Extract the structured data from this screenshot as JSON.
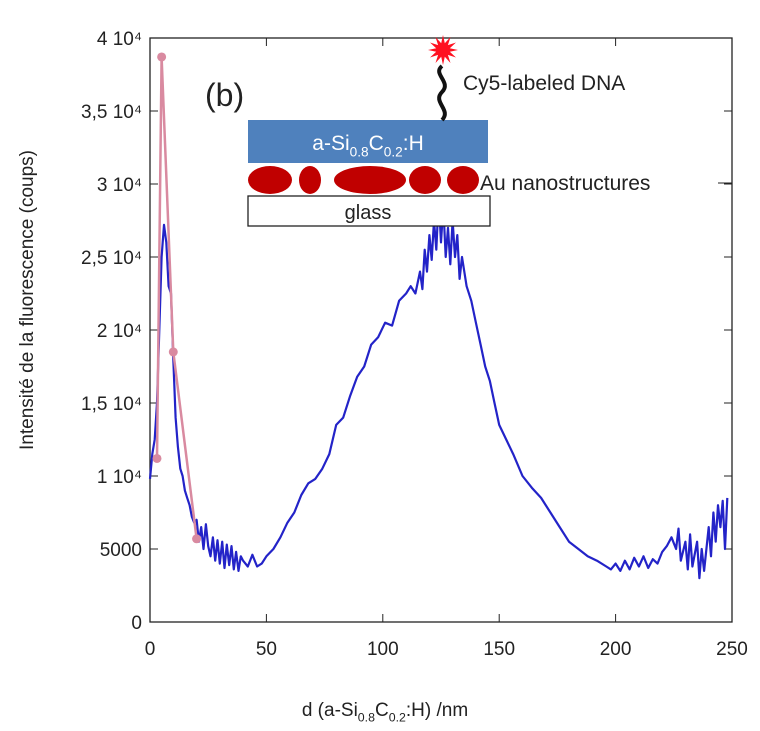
{
  "chart_data": {
    "type": "line",
    "ylabel": "Intensité de la fluorescence (coups)",
    "xlabel": [
      "d (a-Si",
      "0.8",
      "C",
      "0.2",
      ":H) /nm"
    ],
    "xlim": [
      0,
      250
    ],
    "xticks": [
      0,
      50,
      100,
      150,
      200,
      250
    ],
    "ylim": [
      0,
      40000
    ],
    "yticks": [
      0,
      5000,
      {
        "value": 10000,
        "label": "1 10⁴"
      },
      {
        "value": 15000,
        "label": "1,5 10⁴"
      },
      {
        "value": 20000,
        "label": "2 10⁴"
      },
      {
        "value": 25000,
        "label": "2,5 10⁴"
      },
      {
        "value": 30000,
        "label": "3 10⁴"
      },
      {
        "value": 35000,
        "label": "3,5 10⁴"
      },
      {
        "value": 40000,
        "label": "4 10⁴"
      }
    ],
    "grid": false,
    "series": [
      {
        "color": "#2323c8",
        "markers": false,
        "x": [
          0,
          1,
          2,
          3,
          4,
          5,
          6,
          7,
          8,
          9,
          10,
          11,
          12,
          13,
          14,
          15,
          16,
          17,
          18,
          19,
          20,
          21,
          22,
          23,
          24,
          25,
          26,
          27,
          28,
          29,
          30,
          31,
          32,
          33,
          34,
          35,
          36,
          37,
          38,
          39,
          40,
          42,
          44,
          46,
          48,
          50,
          53,
          56,
          59,
          62,
          65,
          68,
          71,
          74,
          77,
          80,
          83,
          86,
          89,
          92,
          95,
          98,
          101,
          104,
          107,
          110,
          112,
          114,
          116,
          117,
          118,
          119,
          120,
          121,
          122,
          123,
          124,
          125,
          126,
          127,
          128,
          129,
          130,
          131,
          132,
          133,
          134,
          136,
          138,
          140,
          142,
          144,
          146,
          148,
          150,
          153,
          156,
          160,
          164,
          168,
          172,
          176,
          180,
          184,
          188,
          192,
          196,
          198,
          200,
          202,
          204,
          206,
          208,
          210,
          212,
          214,
          216,
          218,
          220,
          222,
          224,
          226,
          227,
          228,
          230,
          231,
          232,
          233,
          235,
          236,
          237,
          238,
          240,
          241,
          242,
          243,
          244,
          245,
          246,
          247,
          248
        ],
        "values": [
          9800,
          11500,
          12500,
          15000,
          20000,
          25000,
          27200,
          26000,
          23000,
          22500,
          18000,
          14000,
          12000,
          10500,
          10000,
          9000,
          8500,
          8000,
          7200,
          6800,
          7000,
          5500,
          6500,
          5000,
          6700,
          5200,
          4500,
          5800,
          4200,
          5600,
          4000,
          5500,
          3700,
          5300,
          3900,
          5200,
          3600,
          4800,
          3500,
          4500,
          4200,
          3800,
          4600,
          3800,
          4000,
          4500,
          5000,
          5800,
          6800,
          7500,
          8700,
          9500,
          9800,
          10500,
          11500,
          13500,
          14000,
          15500,
          16800,
          17500,
          19000,
          19500,
          20500,
          20300,
          22000,
          22500,
          23000,
          22500,
          24000,
          22800,
          25500,
          24000,
          26500,
          24800,
          27500,
          25500,
          29000,
          26000,
          28500,
          25000,
          27000,
          24500,
          27500,
          25000,
          26500,
          23500,
          25000,
          23000,
          22000,
          20500,
          19000,
          17500,
          16500,
          15000,
          13500,
          12500,
          11500,
          10000,
          9200,
          8500,
          7500,
          6500,
          5500,
          5000,
          4500,
          4200,
          3800,
          3600,
          4000,
          3500,
          4200,
          3600,
          4400,
          3800,
          4500,
          3700,
          4300,
          4000,
          4800,
          5200,
          5800,
          5000,
          6400,
          4200,
          5500,
          3600,
          6000,
          3800,
          5500,
          3000,
          5000,
          3500,
          6500,
          4500,
          7500,
          5500,
          8000,
          6500,
          8300,
          5000,
          8500
        ]
      },
      {
        "color": "#d98aa0",
        "markers": true,
        "x": [
          3,
          5,
          10,
          20
        ],
        "values": [
          11200,
          38700,
          18500,
          5700
        ]
      }
    ],
    "inset": {
      "panel": "(b)",
      "dna_label": "Cy5-labeled DNA",
      "layer_label": [
        "a-Si",
        "0.8",
        "C",
        "0.2",
        ":H"
      ],
      "particles_label": "Au nanostructures",
      "substrate_label": "glass"
    }
  }
}
